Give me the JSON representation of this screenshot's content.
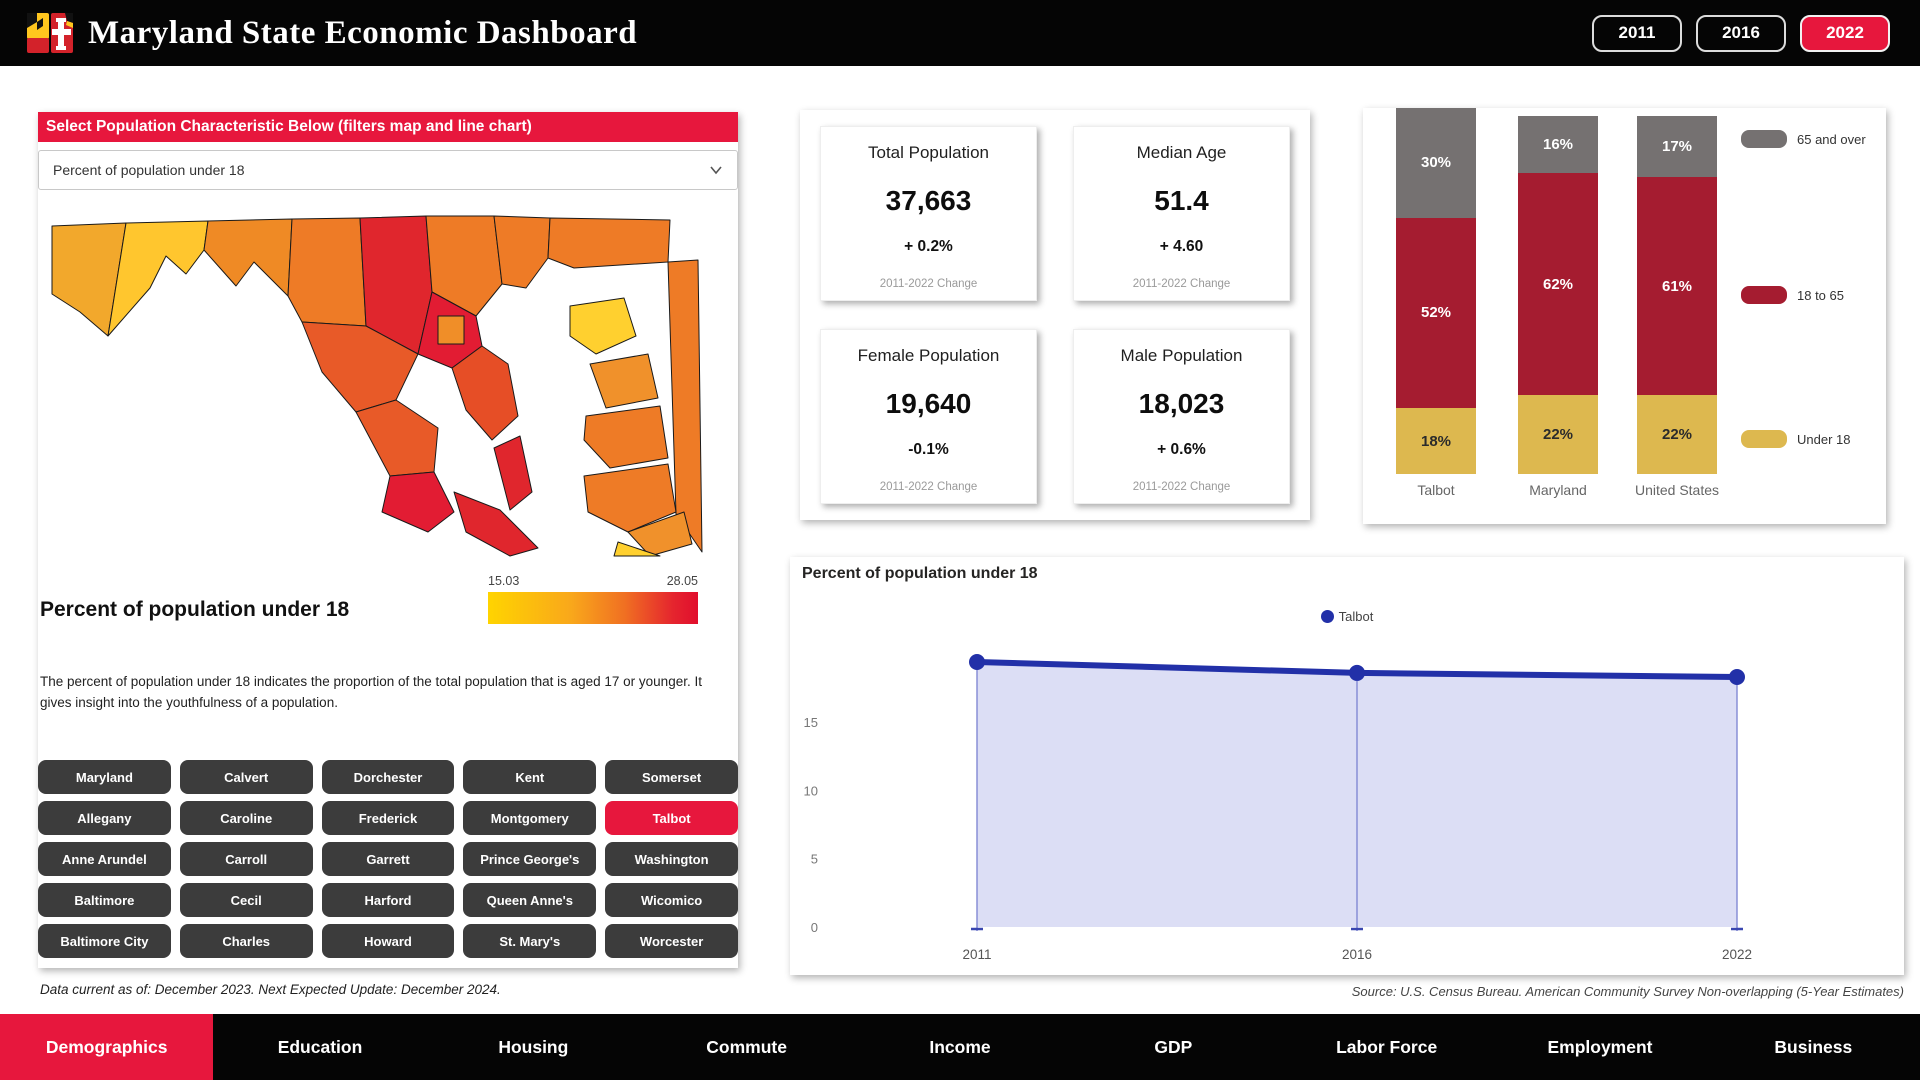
{
  "header": {
    "title": "Maryland State Economic Dashboard",
    "year_buttons": [
      {
        "label": "2011",
        "active": false
      },
      {
        "label": "2016",
        "active": false
      },
      {
        "label": "2022",
        "active": true
      }
    ]
  },
  "filter_panel": {
    "banner": "Select Population Characteristic Below (filters map and line chart)",
    "dropdown_value": "Percent of population under 18",
    "map_title": "Percent of population under 18",
    "legend_min": "15.03",
    "legend_max": "28.05",
    "description": "The percent of population under 18 indicates the proportion of the total population that is aged 17 or younger. It gives insight into the youthfulness of a population.",
    "counties": [
      "Maryland",
      "Calvert",
      "Dorchester",
      "Kent",
      "Somerset",
      "Allegany",
      "Caroline",
      "Frederick",
      "Montgomery",
      "Talbot",
      "Anne Arundel",
      "Carroll",
      "Garrett",
      "Prince George's",
      "Washington",
      "Baltimore",
      "Cecil",
      "Harford",
      "Queen Anne's",
      "Wicomico",
      "Baltimore City",
      "Charles",
      "Howard",
      "St. Mary's",
      "Worcester"
    ],
    "selected_county": "Talbot",
    "footnote": "Data current as of: December 2023. Next Expected Update: December 2024."
  },
  "map": {
    "region_colors": {
      "garrett": "#F2A82C",
      "allegany": "#FFC62E",
      "washington": "#EF8A25",
      "frederick": "#EE7B26",
      "carroll": "#E0262D",
      "baltimore-county": "#EE7B26",
      "harford": "#EE7B26",
      "cecil": "#EE7B26",
      "howard": "#E21C33",
      "baltimore-city": "#F08E28",
      "montgomery": "#E85A28",
      "prince-georges": "#E85A28",
      "anne-arundel": "#E64E26",
      "calvert": "#E0262D",
      "charles": "#E21C33",
      "st-marys": "#E0262D",
      "kent": "#FFD02F",
      "queen-annes": "#F0912B",
      "talbot-caroline": "#EE7B26",
      "dorchester": "#EE7B26",
      "wicomico": "#F0912B",
      "worcester": "#EE7B26",
      "somerset": "#FFD02F"
    }
  },
  "kpis": [
    {
      "title": "Total Population",
      "value": "37,663",
      "change": "+  0.2%",
      "sub": "2011-2022 Change"
    },
    {
      "title": "Median Age",
      "value": "51.4",
      "change": "+  4.60",
      "sub": "2011-2022 Change"
    },
    {
      "title": "Female Population",
      "value": "19,640",
      "change": "-0.1%",
      "sub": "2011-2022 Change"
    },
    {
      "title": "Male Population",
      "value": "18,023",
      "change": "+  0.6%",
      "sub": "2011-2022 Change"
    }
  ],
  "chart_data": [
    {
      "type": "bar",
      "subtype": "stacked-100-percent",
      "categories": [
        "Talbot",
        "Maryland",
        "United States"
      ],
      "series": [
        {
          "name": "65 and over",
          "color": "#757171",
          "text_color": "#ffffff",
          "values": [
            30,
            16,
            17
          ]
        },
        {
          "name": "18 to 65",
          "color": "#A51C30",
          "text_color": "#ffffff",
          "values": [
            52,
            62,
            61
          ]
        },
        {
          "name": "Under 18",
          "color": "#DDB84F",
          "text_color": "#2b2b2b",
          "values": [
            18,
            22,
            22
          ]
        }
      ],
      "value_format": "percent",
      "legend_position": "right"
    },
    {
      "type": "line",
      "title": "Percent of population under 18",
      "x": [
        "2011",
        "2016",
        "2022"
      ],
      "series": [
        {
          "name": "Talbot",
          "color": "#2230A8",
          "values": [
            19.4,
            18.6,
            18.3
          ]
        }
      ],
      "yticks": [
        0,
        5,
        10,
        15
      ],
      "ylim": [
        0,
        21.9
      ],
      "area_fill": "#DCDEF5",
      "grid": false,
      "legend_position": "top-center",
      "source": "Source: U.S. Census Bureau. American Community Survey Non-overlapping (5-Year Estimates)"
    }
  ],
  "nav": {
    "items": [
      {
        "label": "Demographics",
        "active": true
      },
      {
        "label": "Education",
        "active": false
      },
      {
        "label": "Housing",
        "active": false
      },
      {
        "label": "Commute",
        "active": false
      },
      {
        "label": "Income",
        "active": false
      },
      {
        "label": "GDP",
        "active": false
      },
      {
        "label": "Labor Force",
        "active": false
      },
      {
        "label": "Employment",
        "active": false
      },
      {
        "label": "Business",
        "active": false
      }
    ]
  }
}
